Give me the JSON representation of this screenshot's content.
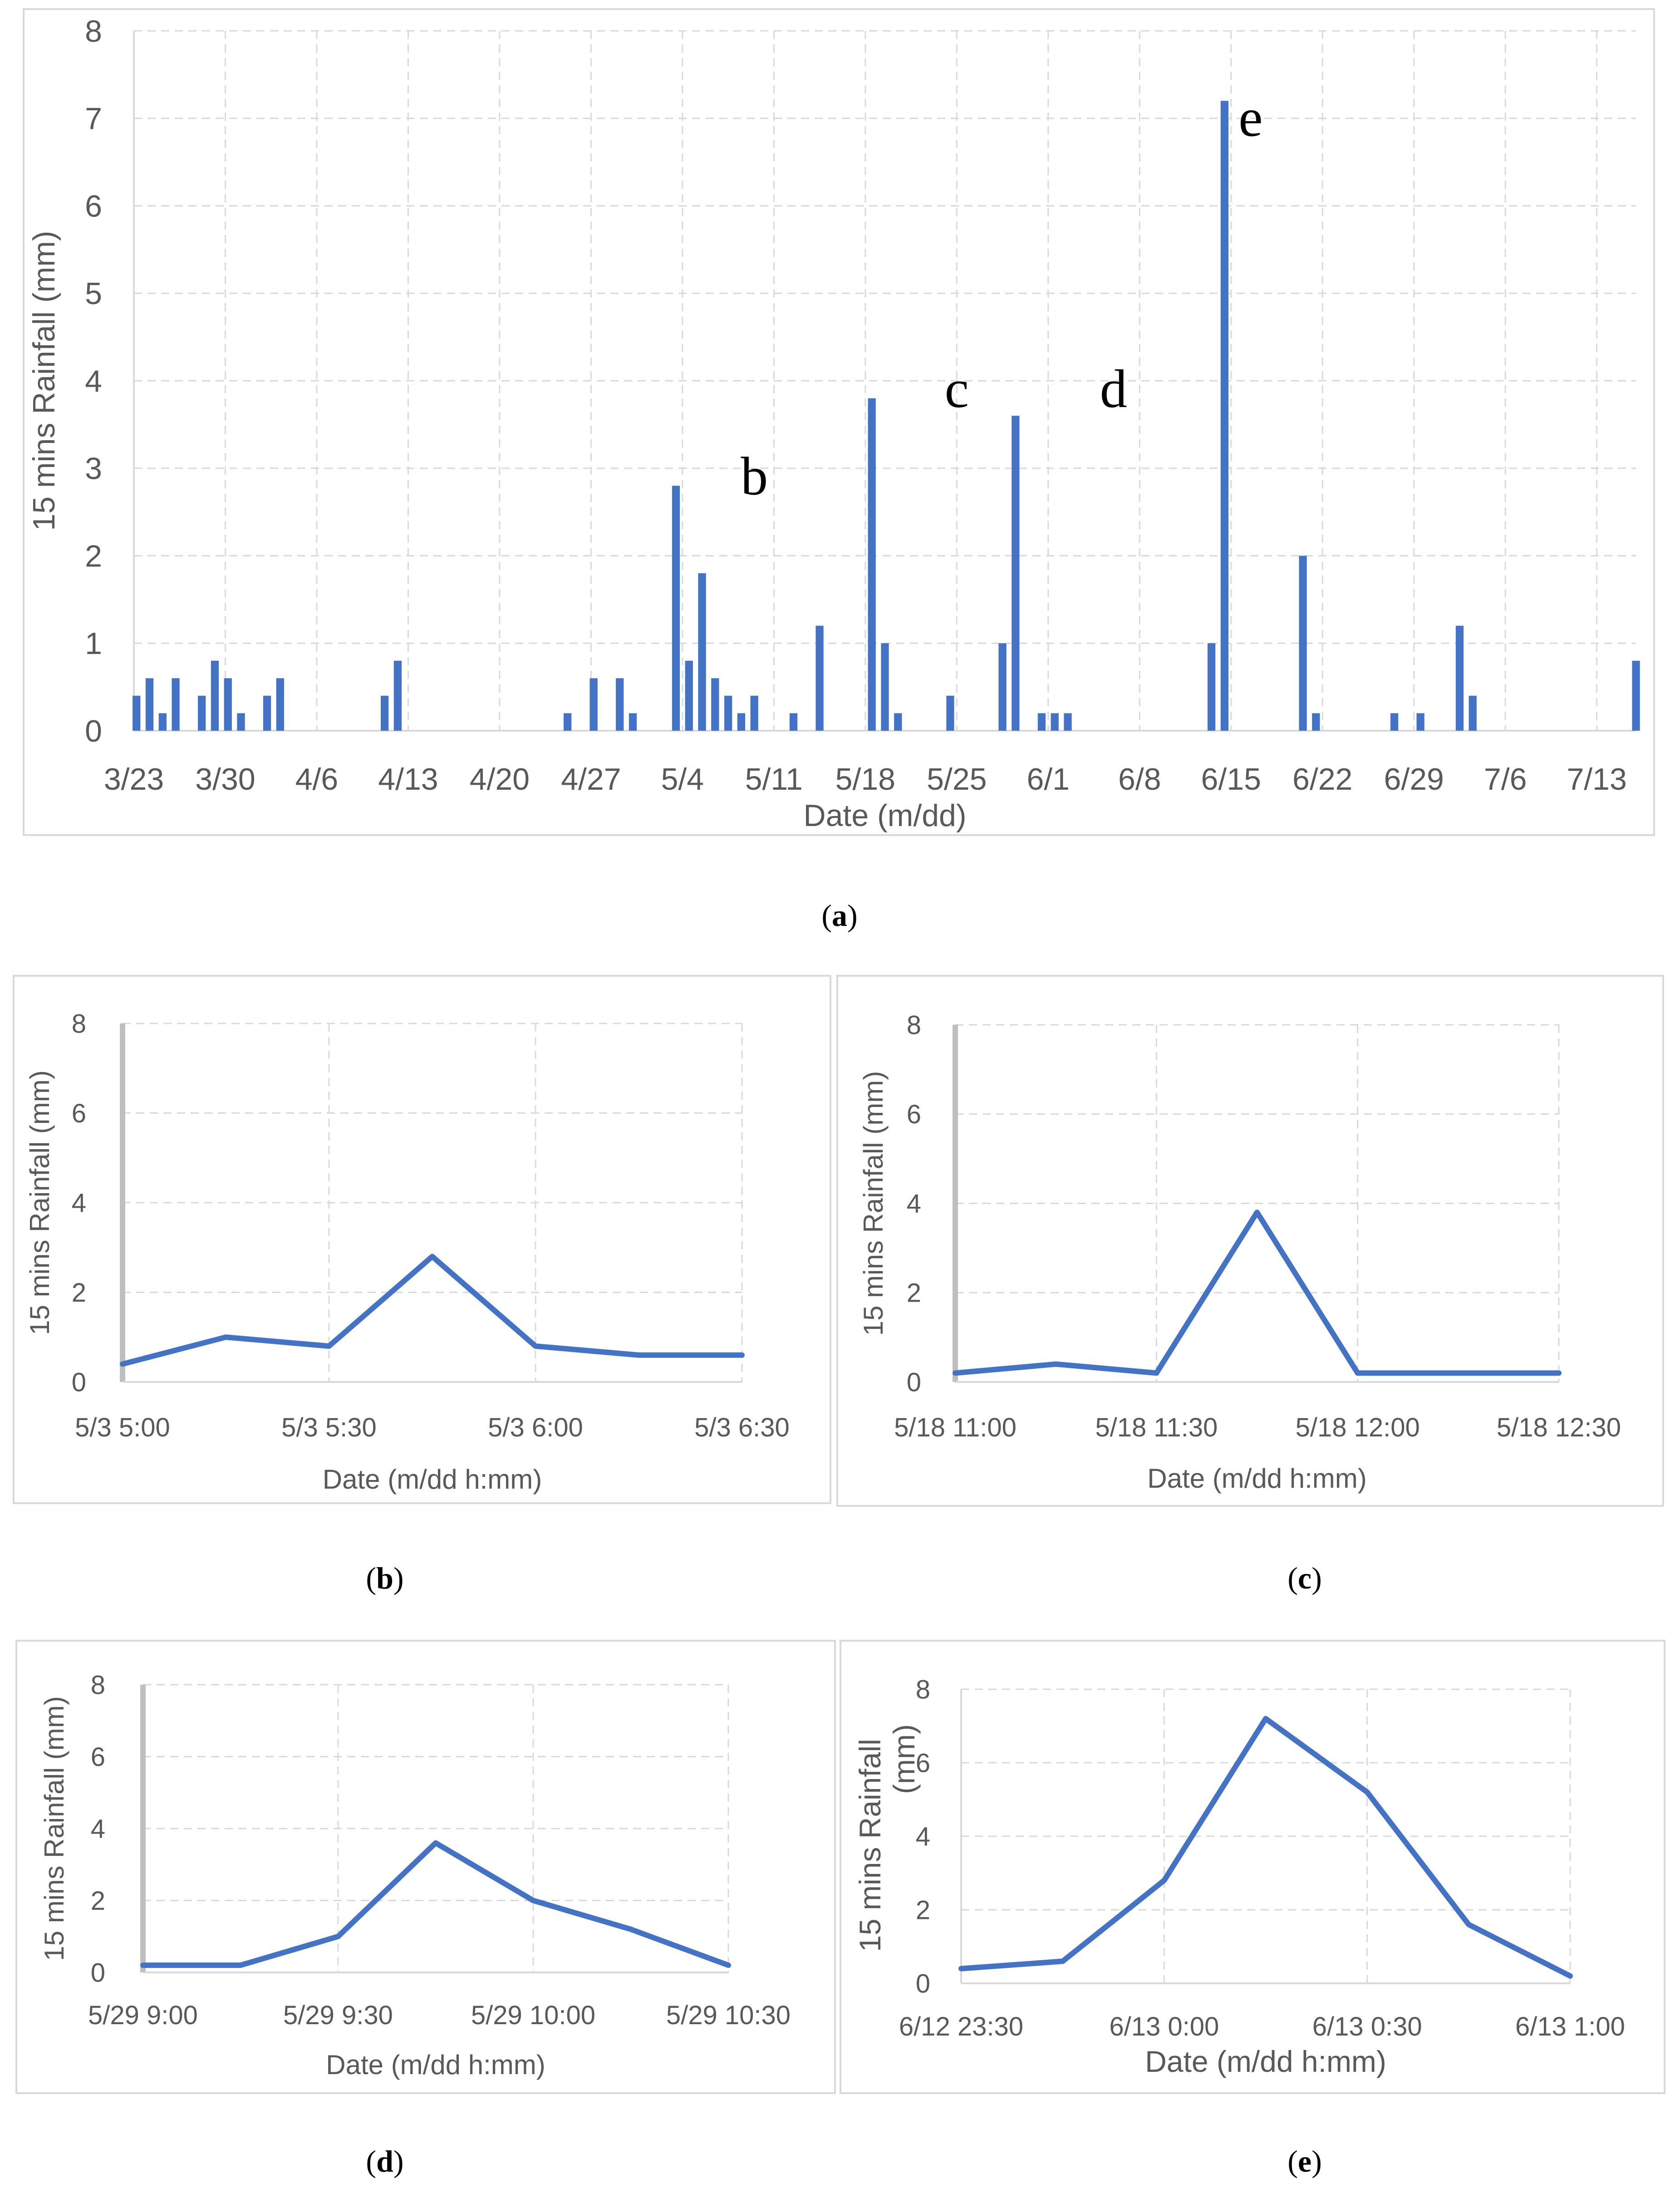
{
  "chart_data": [
    {
      "id": "a",
      "type": "bar",
      "caption": "a",
      "xlabel": "Date (m/dd)",
      "ylabel": "15 mins Rainfall (mm)",
      "ylim": [
        0,
        8
      ],
      "yticks": [
        0,
        1,
        2,
        3,
        4,
        5,
        6,
        7,
        8
      ],
      "xlim": [
        0,
        115
      ],
      "x_ticks": [
        {
          "label": "3/23",
          "x": 0
        },
        {
          "label": "3/30",
          "x": 7
        },
        {
          "label": "4/6",
          "x": 14
        },
        {
          "label": "4/13",
          "x": 21
        },
        {
          "label": "4/20",
          "x": 28
        },
        {
          "label": "4/27",
          "x": 35
        },
        {
          "label": "5/4",
          "x": 42
        },
        {
          "label": "5/11",
          "x": 49
        },
        {
          "label": "5/18",
          "x": 56
        },
        {
          "label": "5/25",
          "x": 63
        },
        {
          "label": "6/1",
          "x": 70
        },
        {
          "label": "6/8",
          "x": 77
        },
        {
          "label": "6/15",
          "x": 84
        },
        {
          "label": "6/22",
          "x": 91
        },
        {
          "label": "6/29",
          "x": 98
        },
        {
          "label": "7/6",
          "x": 105
        },
        {
          "label": "7/13",
          "x": 112
        }
      ],
      "bars": [
        {
          "x": 0.2,
          "value": 0.4
        },
        {
          "x": 1.2,
          "value": 0.6
        },
        {
          "x": 2.2,
          "value": 0.2
        },
        {
          "x": 3.2,
          "value": 0.6
        },
        {
          "x": 5.2,
          "value": 0.4
        },
        {
          "x": 6.2,
          "value": 0.8
        },
        {
          "x": 7.2,
          "value": 0.6
        },
        {
          "x": 8.2,
          "value": 0.2
        },
        {
          "x": 10.2,
          "value": 0.4
        },
        {
          "x": 11.2,
          "value": 0.6
        },
        {
          "x": 19.2,
          "value": 0.4
        },
        {
          "x": 20.2,
          "value": 0.8
        },
        {
          "x": 33.2,
          "value": 0.2
        },
        {
          "x": 35.2,
          "value": 0.6
        },
        {
          "x": 37.2,
          "value": 0.6
        },
        {
          "x": 38.2,
          "value": 0.2
        },
        {
          "x": 41.5,
          "value": 2.8
        },
        {
          "x": 42.5,
          "value": 0.8
        },
        {
          "x": 43.5,
          "value": 1.8
        },
        {
          "x": 44.5,
          "value": 0.6
        },
        {
          "x": 45.5,
          "value": 0.4
        },
        {
          "x": 46.5,
          "value": 0.2
        },
        {
          "x": 47.5,
          "value": 0.4
        },
        {
          "x": 50.5,
          "value": 0.2
        },
        {
          "x": 52.5,
          "value": 1.2
        },
        {
          "x": 56.5,
          "value": 3.8
        },
        {
          "x": 57.5,
          "value": 1.0
        },
        {
          "x": 58.5,
          "value": 0.2
        },
        {
          "x": 62.5,
          "value": 0.4
        },
        {
          "x": 66.5,
          "value": 1.0
        },
        {
          "x": 67.5,
          "value": 3.6
        },
        {
          "x": 69.5,
          "value": 0.2
        },
        {
          "x": 70.5,
          "value": 0.2
        },
        {
          "x": 71.5,
          "value": 0.2
        },
        {
          "x": 82.5,
          "value": 1.0
        },
        {
          "x": 83.5,
          "value": 7.2
        },
        {
          "x": 89.5,
          "value": 2.0
        },
        {
          "x": 90.5,
          "value": 0.2
        },
        {
          "x": 96.5,
          "value": 0.2
        },
        {
          "x": 98.5,
          "value": 0.2
        },
        {
          "x": 101.5,
          "value": 1.2
        },
        {
          "x": 102.5,
          "value": 0.4
        },
        {
          "x": 115.0,
          "value": 0.8
        }
      ],
      "annotations": [
        {
          "text": "b",
          "x": 47.5,
          "y": 2.7
        },
        {
          "text": "c",
          "x": 63.0,
          "y": 3.7
        },
        {
          "text": "d",
          "x": 75.0,
          "y": 3.7
        },
        {
          "text": "e",
          "x": 85.5,
          "y": 6.8
        }
      ]
    },
    {
      "id": "b",
      "type": "line",
      "caption": "b",
      "xlabel": "Date (m/dd h:mm)",
      "ylabel": "15 mins Rainfall (mm)",
      "ylim": [
        0,
        8
      ],
      "yticks": [
        0,
        2,
        4,
        6,
        8
      ],
      "xlim": [
        0,
        90
      ],
      "x_ticks": [
        {
          "label": "5/3 5:00",
          "x": 0
        },
        {
          "label": "5/3 5:30",
          "x": 30
        },
        {
          "label": "5/3 6:00",
          "x": 60
        },
        {
          "label": "5/3 6:30",
          "x": 90
        }
      ],
      "x_minutes": [
        0,
        15,
        30,
        45,
        60,
        75,
        90
      ],
      "values": [
        0.4,
        1.0,
        0.8,
        2.8,
        0.8,
        0.6,
        0.6
      ]
    },
    {
      "id": "c",
      "type": "line",
      "caption": "c",
      "xlabel": "Date (m/dd h:mm)",
      "ylabel": "15 mins Rainfall (mm)",
      "ylim": [
        0,
        8
      ],
      "yticks": [
        0,
        2,
        4,
        6,
        8
      ],
      "xlim": [
        0,
        90
      ],
      "x_ticks": [
        {
          "label": "5/18 11:00",
          "x": 0
        },
        {
          "label": "5/18 11:30",
          "x": 30
        },
        {
          "label": "5/18 12:00",
          "x": 60
        },
        {
          "label": "5/18 12:30",
          "x": 90
        }
      ],
      "x_minutes": [
        0,
        15,
        30,
        45,
        60,
        75,
        90
      ],
      "values": [
        0.2,
        0.4,
        0.2,
        3.8,
        0.2,
        0.2,
        0.2
      ]
    },
    {
      "id": "d",
      "type": "line",
      "caption": "d",
      "xlabel": "Date (m/dd h:mm)",
      "ylabel": "15 mins Rainfall (mm)",
      "ylim": [
        0,
        8
      ],
      "yticks": [
        0,
        2,
        4,
        6,
        8
      ],
      "xlim": [
        0,
        90
      ],
      "x_ticks": [
        {
          "label": "5/29 9:00",
          "x": 0
        },
        {
          "label": "5/29 9:30",
          "x": 30
        },
        {
          "label": "5/29 10:00",
          "x": 60
        },
        {
          "label": "5/29 10:30",
          "x": 90
        }
      ],
      "x_minutes": [
        0,
        15,
        30,
        45,
        60,
        75,
        90
      ],
      "values": [
        0.2,
        0.2,
        1.0,
        3.6,
        2.0,
        1.2,
        0.2
      ]
    },
    {
      "id": "e",
      "type": "line",
      "caption": "e",
      "xlabel": "Date (m/dd h:mm)",
      "ylabel": "15 mins Rainfall",
      "ylabel_unit": "(mm)",
      "ylim": [
        0,
        8
      ],
      "yticks": [
        0,
        2,
        4,
        6,
        8
      ],
      "xlim": [
        0,
        90
      ],
      "x_ticks": [
        {
          "label": "6/12 23:30",
          "x": 0
        },
        {
          "label": "6/13 0:00",
          "x": 30
        },
        {
          "label": "6/13 0:30",
          "x": 60
        },
        {
          "label": "6/13 1:00",
          "x": 90
        }
      ],
      "x_minutes": [
        0,
        15,
        30,
        45,
        60,
        75,
        90
      ],
      "values": [
        0.4,
        0.6,
        2.8,
        7.2,
        5.2,
        1.6,
        0.2
      ]
    }
  ]
}
